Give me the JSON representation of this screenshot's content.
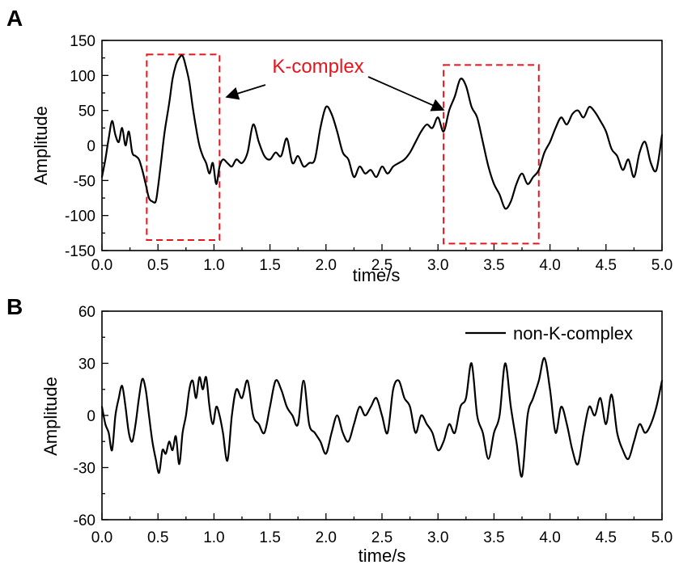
{
  "chart_data": [
    {
      "id": "A",
      "type": "line",
      "panel_label": "A",
      "xlabel": "time/s",
      "ylabel": "Amplitude",
      "xlim": [
        0,
        5
      ],
      "ylim": [
        -150,
        150
      ],
      "xticks": [
        "0.0",
        "0.5",
        "1.0",
        "1.5",
        "2.0",
        "2.5",
        "3.0",
        "3.5",
        "4.0",
        "4.5",
        "5.0"
      ],
      "yticks": [
        "150",
        "100",
        "50",
        "0",
        "-50",
        "-100",
        "-150"
      ],
      "series": [
        {
          "x": [
            0.0,
            0.03,
            0.06,
            0.09,
            0.12,
            0.15,
            0.18,
            0.21,
            0.24,
            0.27,
            0.3,
            0.33,
            0.36,
            0.39,
            0.42,
            0.45,
            0.48,
            0.5,
            0.53,
            0.56,
            0.6,
            0.63,
            0.66,
            0.69,
            0.72,
            0.75,
            0.78,
            0.81,
            0.84,
            0.87,
            0.9,
            0.93,
            0.96,
            0.99,
            1.02,
            1.05,
            1.08,
            1.12,
            1.16,
            1.2,
            1.25,
            1.3,
            1.35,
            1.4,
            1.45,
            1.5,
            1.55,
            1.6,
            1.65,
            1.7,
            1.75,
            1.8,
            1.85,
            1.9,
            1.95,
            2.0,
            2.05,
            2.1,
            2.15,
            2.2,
            2.25,
            2.3,
            2.35,
            2.4,
            2.45,
            2.5,
            2.55,
            2.6,
            2.65,
            2.7,
            2.75,
            2.8,
            2.85,
            2.9,
            2.95,
            3.0,
            3.05,
            3.1,
            3.15,
            3.2,
            3.25,
            3.3,
            3.35,
            3.4,
            3.45,
            3.5,
            3.55,
            3.6,
            3.65,
            3.7,
            3.75,
            3.8,
            3.85,
            3.9,
            3.95,
            4.0,
            4.05,
            4.1,
            4.15,
            4.2,
            4.25,
            4.3,
            4.35,
            4.4,
            4.45,
            4.5,
            4.55,
            4.6,
            4.65,
            4.7,
            4.75,
            4.8,
            4.85,
            4.9,
            4.95,
            5.0
          ],
          "y": [
            -45,
            -20,
            10,
            35,
            15,
            5,
            25,
            0,
            20,
            -10,
            -15,
            -20,
            -35,
            -55,
            -75,
            -80,
            -80,
            -60,
            -20,
            20,
            60,
            95,
            115,
            125,
            128,
            112,
            90,
            55,
            25,
            0,
            -15,
            -25,
            -40,
            -25,
            -55,
            -30,
            -20,
            -25,
            -30,
            -20,
            -25,
            -10,
            30,
            5,
            -15,
            -20,
            -10,
            -15,
            10,
            -25,
            -15,
            -30,
            -25,
            -20,
            25,
            55,
            45,
            20,
            -10,
            -20,
            -45,
            -30,
            -40,
            -35,
            -45,
            -30,
            -40,
            -30,
            -25,
            -20,
            -10,
            5,
            20,
            30,
            25,
            40,
            20,
            50,
            70,
            95,
            85,
            55,
            40,
            5,
            -30,
            -55,
            -70,
            -90,
            -80,
            -55,
            -40,
            -55,
            -45,
            -35,
            -10,
            5,
            25,
            40,
            30,
            45,
            50,
            40,
            55,
            48,
            35,
            20,
            -5,
            -15,
            -35,
            -20,
            -45,
            -10,
            5,
            -25,
            -35,
            15
          ]
        }
      ],
      "annotations": [
        {
          "text": "K-complex",
          "color": "#e8141b"
        }
      ],
      "highlight_boxes": [
        {
          "x": [
            0.4,
            1.05
          ],
          "y": [
            -135,
            130
          ],
          "color": "#e8141b"
        },
        {
          "x": [
            3.05,
            3.9
          ],
          "y": [
            -140,
            115
          ],
          "color": "#e8141b"
        }
      ]
    },
    {
      "id": "B",
      "type": "line",
      "panel_label": "B",
      "xlabel": "time/s",
      "ylabel": "Amplitude",
      "xlim": [
        0,
        5
      ],
      "ylim": [
        -60,
        60
      ],
      "xticks": [
        "0.0",
        "0.5",
        "1.0",
        "1.5",
        "2.0",
        "2.5",
        "3.0",
        "3.5",
        "4.0",
        "4.5",
        "5.0"
      ],
      "yticks": [
        "60",
        "30",
        "0",
        "-30",
        "-60"
      ],
      "legend": {
        "position": "top-right"
      },
      "series": [
        {
          "name": "non-K-complex",
          "x": [
            0.0,
            0.03,
            0.06,
            0.09,
            0.12,
            0.15,
            0.18,
            0.21,
            0.24,
            0.27,
            0.3,
            0.33,
            0.36,
            0.39,
            0.42,
            0.45,
            0.48,
            0.51,
            0.54,
            0.57,
            0.6,
            0.63,
            0.66,
            0.69,
            0.72,
            0.75,
            0.78,
            0.81,
            0.84,
            0.87,
            0.9,
            0.93,
            0.96,
            0.99,
            1.02,
            1.05,
            1.08,
            1.12,
            1.16,
            1.2,
            1.25,
            1.3,
            1.35,
            1.4,
            1.45,
            1.5,
            1.55,
            1.6,
            1.65,
            1.7,
            1.75,
            1.8,
            1.85,
            1.9,
            1.95,
            2.0,
            2.05,
            2.1,
            2.15,
            2.2,
            2.25,
            2.3,
            2.35,
            2.4,
            2.45,
            2.5,
            2.55,
            2.6,
            2.65,
            2.7,
            2.75,
            2.8,
            2.85,
            2.9,
            2.95,
            3.0,
            3.05,
            3.1,
            3.15,
            3.2,
            3.25,
            3.3,
            3.35,
            3.4,
            3.45,
            3.5,
            3.55,
            3.6,
            3.65,
            3.7,
            3.75,
            3.8,
            3.85,
            3.9,
            3.95,
            4.0,
            4.05,
            4.1,
            4.15,
            4.2,
            4.25,
            4.3,
            4.35,
            4.4,
            4.45,
            4.5,
            4.55,
            4.6,
            4.65,
            4.7,
            4.75,
            4.8,
            4.85,
            4.9,
            4.95,
            5.0
          ],
          "y": [
            5,
            -5,
            -10,
            -20,
            0,
            10,
            17,
            5,
            -10,
            -15,
            -5,
            10,
            21,
            15,
            0,
            -15,
            -25,
            -33,
            -20,
            -22,
            -15,
            -20,
            -12,
            -28,
            -10,
            0,
            15,
            20,
            10,
            22,
            15,
            22,
            5,
            -5,
            5,
            0,
            -10,
            -26,
            0,
            15,
            10,
            20,
            0,
            -5,
            -10,
            5,
            20,
            15,
            5,
            0,
            -5,
            20,
            -5,
            -10,
            -15,
            -22,
            -10,
            0,
            -10,
            -15,
            -5,
            5,
            0,
            5,
            10,
            0,
            -10,
            15,
            20,
            10,
            5,
            -10,
            0,
            -5,
            -10,
            -20,
            -15,
            -5,
            -10,
            5,
            10,
            30,
            0,
            -10,
            -25,
            -10,
            0,
            30,
            5,
            -15,
            -35,
            0,
            10,
            20,
            33,
            15,
            -10,
            5,
            -5,
            -20,
            -28,
            -10,
            5,
            0,
            10,
            -5,
            12,
            -10,
            -20,
            -25,
            -15,
            -5,
            -10,
            -5,
            5,
            20
          ]
        }
      ]
    }
  ]
}
